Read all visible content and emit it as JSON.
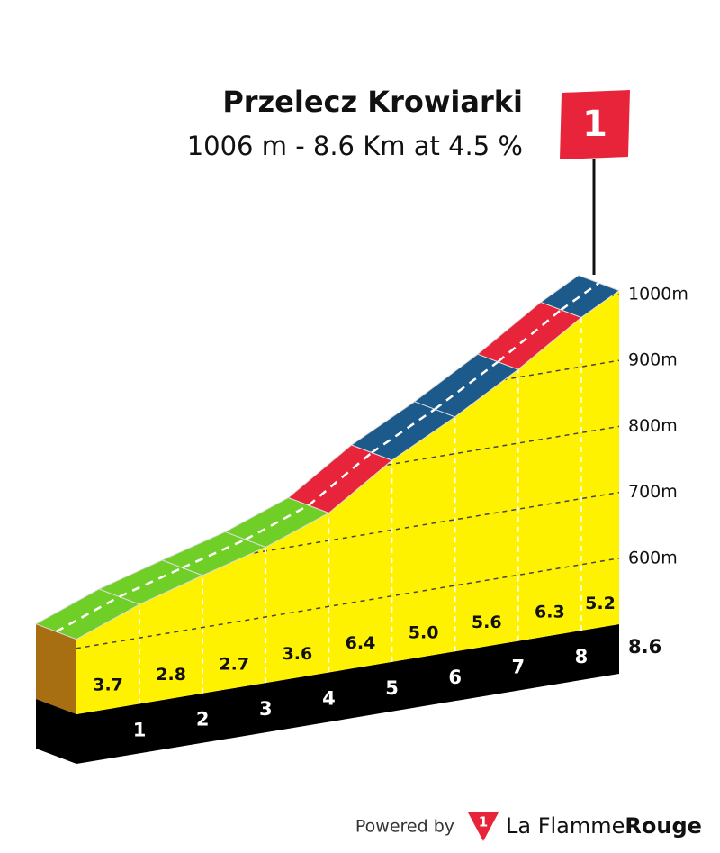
{
  "chart_data": {
    "type": "climb-profile",
    "title": "Przelecz Krowiarki",
    "subtitle": [
      {
        "value": 1006,
        "label": "1006 m"
      },
      "-",
      {
        "value": 8.6,
        "label": "8.6 Km"
      },
      "at",
      {
        "value": 4.5,
        "label": "4.5 %"
      }
    ],
    "category": "1",
    "xlim": [
      0,
      8.6
    ],
    "xticks": [
      1,
      2,
      3,
      4,
      5,
      6,
      7,
      8
    ],
    "values": [
      3.7,
      2.8,
      2.7,
      3.6,
      6.4,
      5.0,
      5.6,
      6.3,
      5.2
    ],
    "value_labels": [
      "3.7",
      "2.8",
      "2.7",
      "3.6",
      "6.4",
      "5.0",
      "5.6",
      "6.3",
      "5.2"
    ],
    "colors": [
      "#6fcf27",
      "#6fcf27",
      "#6fcf27",
      "#6fcf27",
      "#e8243a",
      "#1d5a8c",
      "#1d5a8c",
      "#e8243a",
      "#1d5a8c"
    ],
    "ylim": [
      500,
      1000
    ],
    "yticks": [
      {
        "value": 600,
        "label": "600m"
      },
      {
        "value": 700,
        "label": "700m"
      },
      {
        "value": 800,
        "label": "800m"
      },
      {
        "value": 900,
        "label": "900m"
      },
      {
        "value": 1000,
        "label": "1000m"
      }
    ]
  },
  "footer": {
    "powered": "Powered by",
    "logo_mark": "1",
    "brand": "La Flamme",
    "brand_bold": "Rouge"
  }
}
